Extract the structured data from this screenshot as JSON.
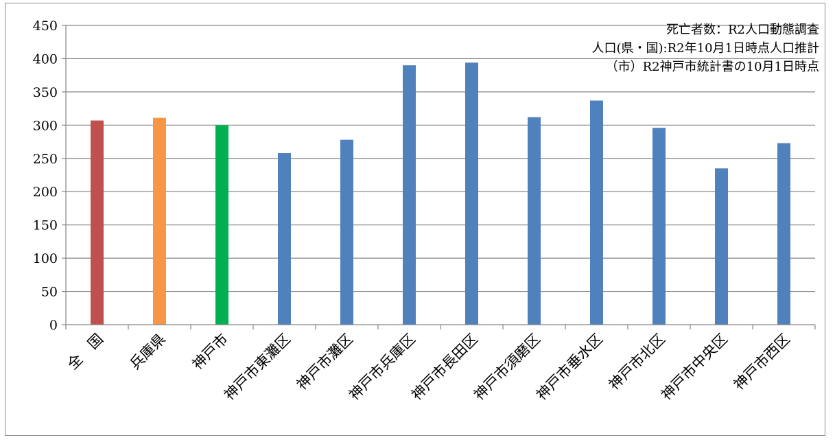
{
  "chart_data": {
    "type": "bar",
    "title": "",
    "xlabel": "",
    "ylabel": "",
    "ylim": [
      0,
      450
    ],
    "yticks": [
      0,
      50,
      100,
      150,
      200,
      250,
      300,
      350,
      400,
      450
    ],
    "grid": true,
    "legend": "none",
    "categories": [
      "全　国",
      "兵庫県",
      "神戸市",
      "神戸市東灘区",
      "神戸市灘区",
      "神戸市兵庫区",
      "神戸市長田区",
      "神戸市須磨区",
      "神戸市垂水区",
      "神戸市北区",
      "神戸市中央区",
      "神戸市西区"
    ],
    "values": [
      307,
      311,
      300,
      258,
      278,
      390,
      394,
      312,
      337,
      296,
      235,
      273
    ],
    "colors": [
      "#c0504d",
      "#f79646",
      "#00b050",
      "#4f81bd",
      "#4f81bd",
      "#4f81bd",
      "#4f81bd",
      "#4f81bd",
      "#4f81bd",
      "#4f81bd",
      "#4f81bd",
      "#4f81bd"
    ],
    "annotations": [
      "死亡者数：R2人口動態調査",
      "人口(県・国):R2年10月1日時点人口推計",
      "（市）R2神戸市統計書の10月1日時点"
    ]
  }
}
